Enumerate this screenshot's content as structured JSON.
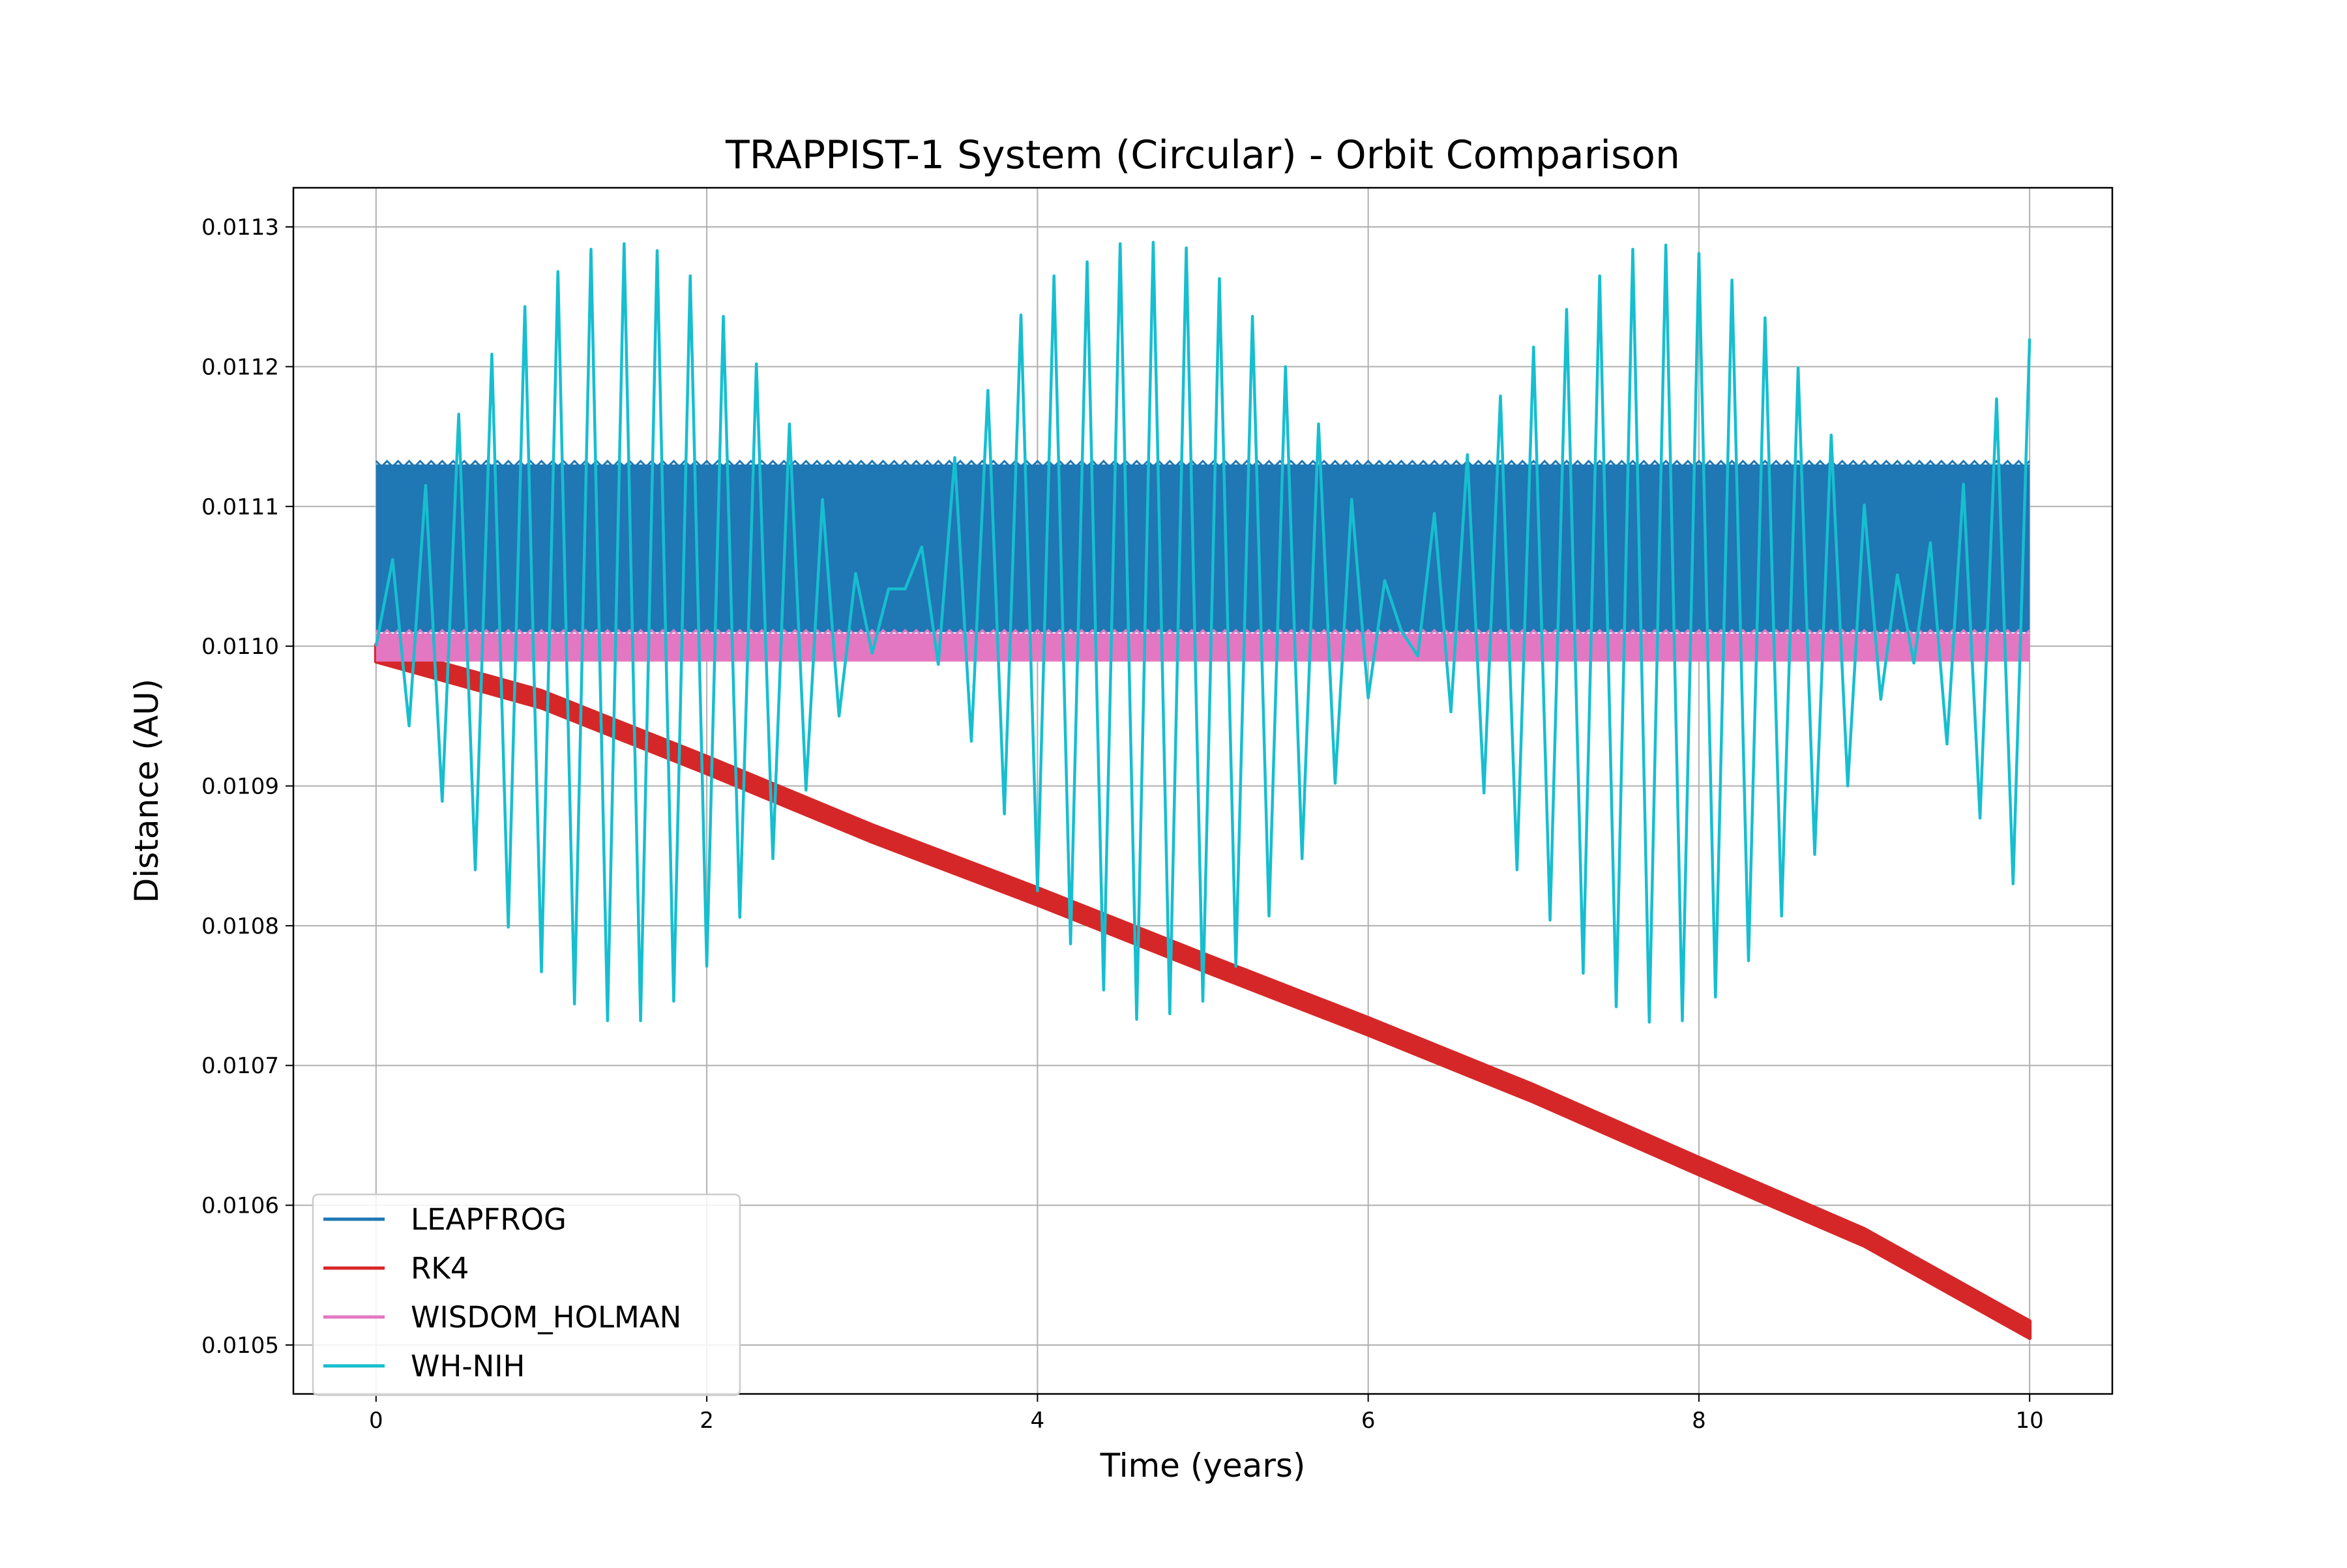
{
  "chart_data": {
    "type": "line",
    "title": "TRAPPIST-1 System (Circular) - Orbit Comparison",
    "xlabel": "Time (years)",
    "ylabel": "Distance (AU)",
    "xlim": [
      -0.5,
      10.5
    ],
    "ylim": [
      0.010465,
      0.011328
    ],
    "xticks": [
      0,
      2,
      4,
      6,
      8,
      10
    ],
    "xtick_labels": [
      "0",
      "2",
      "4",
      "6",
      "8",
      "10"
    ],
    "yticks": [
      0.0105,
      0.0106,
      0.0107,
      0.0108,
      0.0109,
      0.011,
      0.0111,
      0.0112,
      0.0113
    ],
    "ytick_labels": [
      "0.0105",
      "0.0106",
      "0.0107",
      "0.0108",
      "0.0109",
      "0.0110",
      "0.0111",
      "0.0112",
      "0.0113"
    ],
    "grid": true,
    "legend_position": "lower-left",
    "series": [
      {
        "name": "LEAPFROG",
        "color": "#1f77b4",
        "style": "dense-oscillation band",
        "x_range": [
          0,
          10
        ],
        "y_min": 0.01101,
        "y_max": 0.01113
      },
      {
        "name": "RK4",
        "color": "#d62728",
        "style": "dense-oscillation band",
        "x": [
          0,
          1,
          2,
          3,
          4,
          5,
          6,
          7,
          8,
          9,
          10
        ],
        "y_center": [
          0.010995,
          0.010962,
          0.010915,
          0.010866,
          0.010821,
          0.010774,
          0.010728,
          0.01068,
          0.010628,
          0.010577,
          0.010511
        ],
        "band_halfwidth": 6e-06
      },
      {
        "name": "WISDOM_HOLMAN",
        "color": "#e377c2",
        "style": "dense-oscillation band",
        "x_range": [
          0,
          10
        ],
        "y_min": 0.010989,
        "y_max": 0.011009
      },
      {
        "name": "WH-NIH",
        "color": "#17becf",
        "style": "line",
        "x": [
          0,
          0.1,
          0.2,
          0.3,
          0.4,
          0.5,
          0.6,
          0.7,
          0.8,
          0.9,
          1.0,
          1.1,
          1.2,
          1.3,
          1.4,
          1.5,
          1.6,
          1.7,
          1.8,
          1.9,
          2.0,
          2.1,
          2.2,
          2.3,
          2.4,
          2.5,
          2.6,
          2.7,
          2.8,
          2.9,
          3.0,
          3.1,
          3.2,
          3.3,
          3.4,
          3.5,
          3.6,
          3.7,
          3.8,
          3.9,
          4.0,
          4.1,
          4.2,
          4.3,
          4.4,
          4.5,
          4.6,
          4.7,
          4.8,
          4.9,
          5.0,
          5.1,
          5.2,
          5.3,
          5.4,
          5.5,
          5.6,
          5.7,
          5.8,
          5.9,
          6.0,
          6.1,
          6.2,
          6.3,
          6.4,
          6.5,
          6.6,
          6.7,
          6.8,
          6.9,
          7.0,
          7.1,
          7.2,
          7.3,
          7.4,
          7.5,
          7.6,
          7.7,
          7.8,
          7.9,
          8.0,
          8.1,
          8.2,
          8.3,
          8.4,
          8.5,
          8.6,
          8.7,
          8.8,
          8.9,
          9.0,
          9.1,
          9.2,
          9.3,
          9.4,
          9.5,
          9.6,
          9.7,
          9.8,
          9.9,
          10.0
        ],
        "y": [
          0.011,
          0.011062,
          0.010943,
          0.011115,
          0.010889,
          0.011166,
          0.01084,
          0.011209,
          0.010799,
          0.011243,
          0.010767,
          0.011268,
          0.010744,
          0.011284,
          0.010732,
          0.011288,
          0.010732,
          0.011283,
          0.010746,
          0.011265,
          0.010771,
          0.011236,
          0.010806,
          0.011202,
          0.010848,
          0.011159,
          0.010897,
          0.011105,
          0.01095,
          0.011052,
          0.010995,
          0.011041,
          0.011041,
          0.011071,
          0.010987,
          0.011135,
          0.010932,
          0.011183,
          0.01088,
          0.011237,
          0.010825,
          0.011265,
          0.010787,
          0.011275,
          0.010754,
          0.011288,
          0.010733,
          0.011289,
          0.010737,
          0.011285,
          0.010746,
          0.011263,
          0.010771,
          0.011236,
          0.010807,
          0.0112,
          0.010848,
          0.011159,
          0.010902,
          0.011105,
          0.010963,
          0.011047,
          0.011011,
          0.010993,
          0.011095,
          0.010953,
          0.011137,
          0.010895,
          0.011179,
          0.01084,
          0.011214,
          0.010804,
          0.011241,
          0.010766,
          0.011265,
          0.010742,
          0.011284,
          0.010731,
          0.011287,
          0.010732,
          0.011281,
          0.010749,
          0.011262,
          0.010775,
          0.011235,
          0.010807,
          0.011199,
          0.010851,
          0.011151,
          0.0109,
          0.011101,
          0.010962,
          0.011051,
          0.010988,
          0.011074,
          0.01093,
          0.011116,
          0.010877,
          0.011177,
          0.01083,
          0.01122
        ]
      }
    ]
  }
}
